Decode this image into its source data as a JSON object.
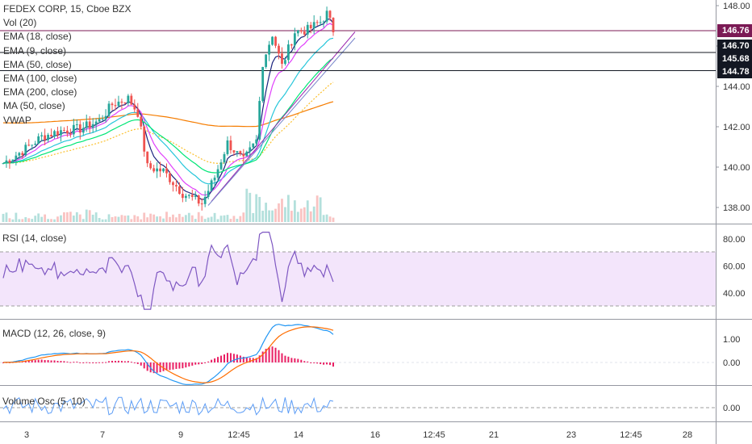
{
  "chart_data": {
    "type": "candlestick",
    "title": "FEDEX CORP, 15, Cboe BZX",
    "legend": [
      "Vol (20)",
      "EMA (18, close)",
      "EMA (9, close)",
      "EMA (50, close)",
      "EMA (100, close)",
      "EMA (200, close)",
      "MA (50, close)",
      "VWAP"
    ],
    "price_axis": {
      "ticks": [
        "148.00",
        "146.00",
        "144.00",
        "142.00",
        "140.00",
        "138.00"
      ],
      "ylim": [
        137.2,
        148.4
      ]
    },
    "price_tags": [
      {
        "label": "146.76",
        "value": 146.76,
        "color": "#7b1a55"
      },
      {
        "label": "146.70",
        "value": 146.7,
        "color": "#131722"
      },
      {
        "label": "145.68",
        "value": 145.68,
        "color": "#131722"
      },
      {
        "label": "144.78",
        "value": 144.78,
        "color": "#131722"
      }
    ],
    "x_ticks": [
      "3",
      "7",
      "9",
      "12:45",
      "14",
      "16",
      "12:45",
      "21",
      "23",
      "12:45",
      "28"
    ],
    "rsi": {
      "label": "RSI (14, close)",
      "ticks": [
        "80.00",
        "60.00",
        "40.00"
      ],
      "band": [
        30,
        70
      ]
    },
    "macd": {
      "label": "MACD (12, 26, close, 9)",
      "ticks": [
        "1.00",
        "0.00"
      ]
    },
    "vol_osc": {
      "label": "Volume Osc (5, 10)",
      "ticks": [
        "0.00"
      ]
    },
    "colors": {
      "up": "#26a69a",
      "down": "#ef5350",
      "rsi": "#7e57c2",
      "rsi_band": "#f3e5fb"
    }
  }
}
